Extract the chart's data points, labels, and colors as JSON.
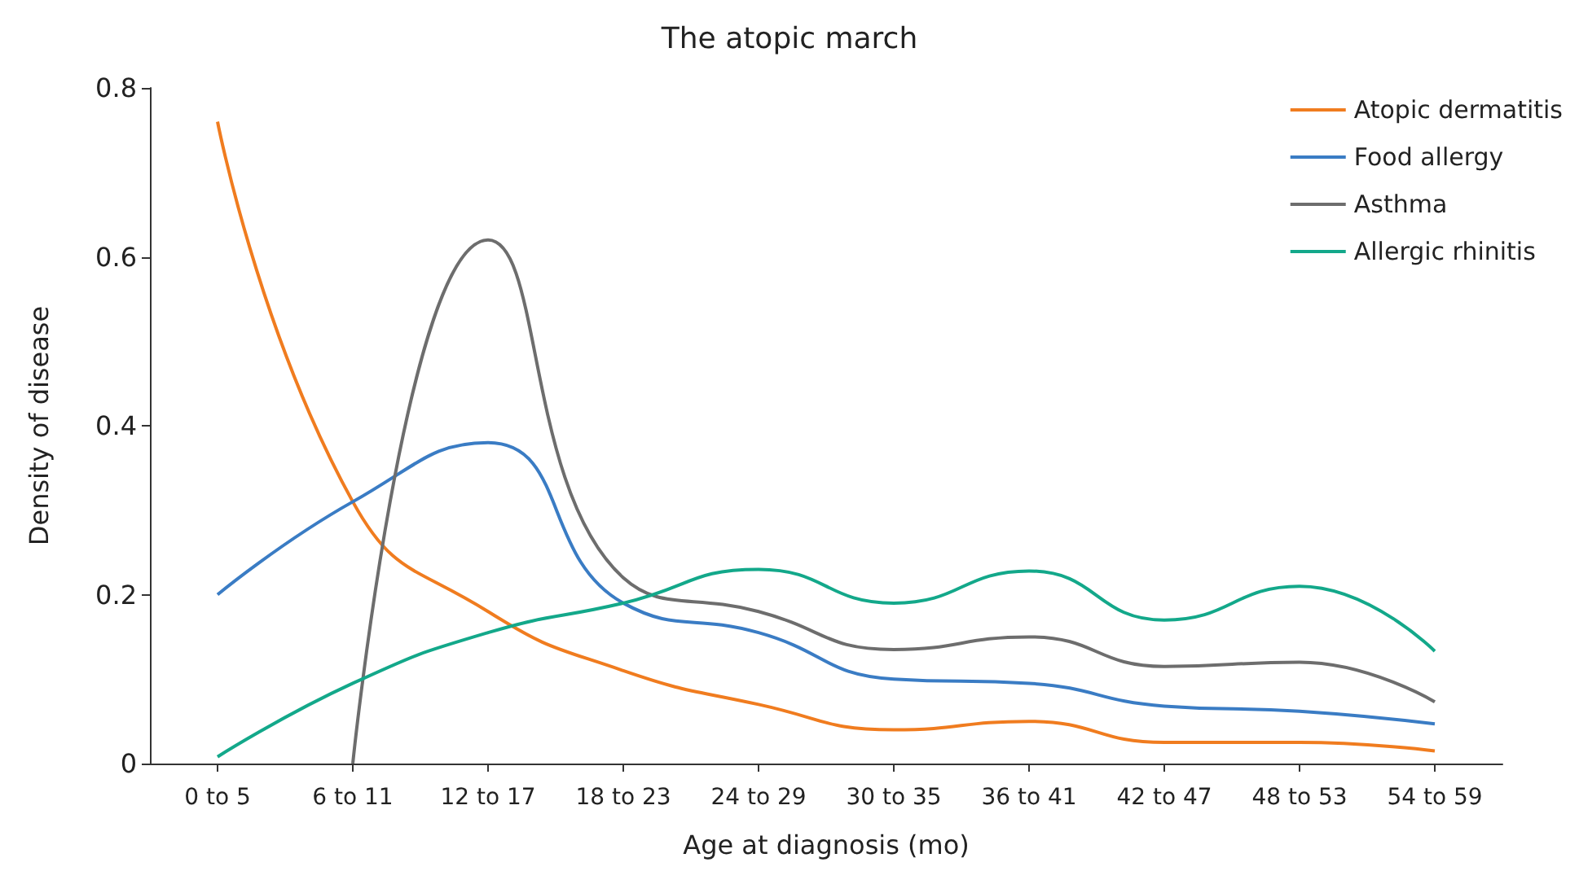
{
  "chart_data": {
    "type": "line",
    "title": "The atopic march",
    "xlabel": "Age at diagnosis (mo)",
    "ylabel": "Density of disease",
    "categories": [
      "0 to 5",
      "6 to 11",
      "12 to 17",
      "18 to 23",
      "24 to 29",
      "30 to 35",
      "36 to 41",
      "42 to 47",
      "48 to 53",
      "54 to 59"
    ],
    "series": [
      {
        "name": "Atopic dermatitis",
        "color": "#f07c1f",
        "values": [
          0.76,
          0.31,
          0.18,
          0.11,
          0.07,
          0.04,
          0.05,
          0.025,
          0.025,
          0.015
        ]
      },
      {
        "name": "Food allergy",
        "color": "#3a7cc4",
        "values": [
          0.2,
          0.31,
          0.38,
          0.19,
          0.155,
          0.1,
          0.095,
          0.068,
          0.062,
          0.047
        ]
      },
      {
        "name": "Asthma",
        "color": "#6d6d6d",
        "values": [
          null,
          0,
          0.62,
          0.22,
          0.18,
          0.135,
          0.15,
          0.115,
          0.12,
          0.073
        ]
      },
      {
        "name": "Allergic rhinitis",
        "color": "#13a88a",
        "values": [
          0.008,
          0.095,
          0.155,
          0.19,
          0.23,
          0.19,
          0.228,
          0.17,
          0.21,
          0.133
        ]
      }
    ],
    "ylim": [
      0,
      0.8
    ],
    "yticks": [
      0,
      0.2,
      0.4,
      0.6,
      0.8
    ],
    "grid": false,
    "legend": "top right",
    "marker": "none"
  }
}
